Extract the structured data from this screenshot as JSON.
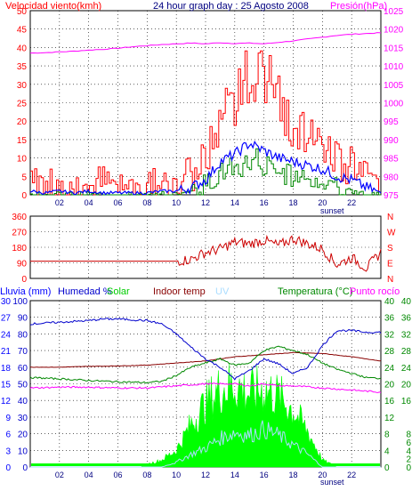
{
  "colors": {
    "wind": "#ff0000",
    "wind_avg": "#0000ff",
    "wind_gust_low": "#008800",
    "pressure": "#ff00ff",
    "direction": "#cc0000",
    "humidity": "#0000cc",
    "solar": "#00ff00",
    "indoor": "#880000",
    "uv": "#aaddff",
    "temperature": "#008800",
    "dewpoint": "#ff00ff",
    "rain": "#0000ff",
    "grid": "#000000",
    "navy": "#000080"
  },
  "top": {
    "left_label": "Velocidad viento(kmh)",
    "title": "24 hour graph day : 25 Agosto 2008",
    "right_label": "Presión(hPa)",
    "sunset_label": "sunset"
  },
  "middle": {
    "compass": [
      "N",
      "W",
      "S",
      "E",
      "N"
    ]
  },
  "bottom": {
    "rain_label": "Lluvia (mm)",
    "humidity_label": "Humedad %",
    "solar_label": "Solar",
    "indoor_label": "Indoor temp",
    "uv_label": "UV",
    "temp_label": "Temperatura (°C)",
    "dew_label": "Punto rocío",
    "sunset_label": "sunset"
  },
  "chart_data": [
    {
      "type": "line",
      "title": "24 hour graph day : 25 Agosto 2008",
      "ylabel": "Velocidad viento(kmh)",
      "ylabel_right": "Presión(hPa)",
      "ylim": [
        0,
        50
      ],
      "ylim_right": [
        975,
        1025
      ],
      "y_ticks": [
        0,
        5,
        10,
        15,
        20,
        25,
        30,
        35,
        40,
        45,
        50
      ],
      "y_ticks_right": [
        975,
        980,
        985,
        990,
        995,
        1000,
        1005,
        1010,
        1015,
        1020,
        1025
      ],
      "x_ticks": [
        "02",
        "04",
        "06",
        "08",
        "10",
        "12",
        "14",
        "16",
        "18",
        "20",
        "22"
      ],
      "series": [
        {
          "name": "Presión(hPa)",
          "axis": "right",
          "x": [
            0,
            1,
            2,
            3,
            4,
            5,
            6,
            7,
            8,
            9,
            10,
            11,
            12,
            13,
            14,
            15,
            16,
            17,
            18,
            19,
            20,
            21,
            22,
            23,
            24
          ],
          "values": [
            1013.5,
            1013.6,
            1013.8,
            1014.0,
            1014.3,
            1014.5,
            1014.8,
            1015.2,
            1015.5,
            1015.8,
            1016.0,
            1016.2,
            1016.0,
            1016.3,
            1016.1,
            1016.2,
            1016.0,
            1016.4,
            1016.8,
            1017.3,
            1017.8,
            1018.3,
            1018.6,
            1018.8,
            1019.0
          ]
        },
        {
          "name": "Velocidad viento",
          "axis": "left",
          "x": [
            0,
            1,
            2,
            3,
            4,
            5,
            6,
            7,
            8,
            9,
            10,
            11,
            12,
            13,
            14,
            15,
            16,
            17,
            18,
            19,
            20,
            21,
            22,
            23,
            24
          ],
          "values": [
            2,
            3,
            3,
            2,
            2,
            3,
            2,
            2,
            2,
            3,
            3,
            5,
            10,
            20,
            24,
            30,
            26,
            22,
            18,
            16,
            14,
            10,
            8,
            5,
            2
          ]
        },
        {
          "name": "Velocidad media",
          "axis": "left",
          "x": [
            0,
            1,
            2,
            3,
            4,
            5,
            6,
            7,
            8,
            9,
            10,
            11,
            12,
            13,
            14,
            15,
            16,
            17,
            18,
            19,
            20,
            21,
            22,
            23,
            24
          ],
          "values": [
            1,
            0.5,
            1,
            0.5,
            1,
            0.5,
            0.5,
            0.5,
            0.5,
            1,
            1,
            2,
            4,
            9,
            11,
            14,
            12,
            10,
            9,
            8,
            7,
            5,
            4,
            2,
            0.5
          ]
        },
        {
          "name": "Racha baja",
          "axis": "left",
          "x": [
            0,
            1,
            2,
            3,
            4,
            5,
            6,
            7,
            8,
            9,
            10,
            11,
            12,
            13,
            14,
            15,
            16,
            17,
            18,
            19,
            20,
            21,
            22,
            23,
            24
          ],
          "values": [
            0,
            0,
            0,
            0,
            0,
            0,
            0,
            0,
            0,
            0,
            0,
            1,
            3,
            6,
            7,
            9,
            7,
            6,
            5,
            4,
            3,
            2,
            1,
            0,
            0
          ]
        }
      ]
    },
    {
      "type": "line",
      "ylim": [
        0,
        360
      ],
      "y_ticks": [
        0,
        90,
        180,
        270,
        360
      ],
      "series": [
        {
          "name": "Dirección viento",
          "x": [
            0,
            2,
            4,
            6,
            8,
            9,
            10,
            11,
            12,
            13,
            14,
            15,
            16,
            17,
            18,
            19,
            20,
            21,
            22,
            23,
            24
          ],
          "values": [
            100,
            100,
            100,
            100,
            100,
            100,
            100,
            110,
            150,
            170,
            210,
            200,
            220,
            190,
            230,
            200,
            170,
            80,
            120,
            60,
            150
          ]
        }
      ]
    },
    {
      "type": "line",
      "x_ticks": [
        "02",
        "04",
        "06",
        "08",
        "10",
        "12",
        "14",
        "16",
        "18",
        "20",
        "22"
      ],
      "axes": {
        "rain": {
          "ylim": [
            0,
            30
          ],
          "ticks": [
            0,
            3,
            6,
            9,
            12,
            15,
            18,
            21,
            24,
            27,
            30
          ]
        },
        "humidity": {
          "ylim": [
            0,
            100
          ],
          "ticks": [
            0,
            10,
            20,
            30,
            40,
            50,
            60,
            70,
            80,
            90,
            100
          ]
        },
        "temp_c": {
          "ylim": [
            0,
            40
          ],
          "ticks": [
            0,
            4,
            8,
            12,
            16,
            20,
            24,
            28,
            32,
            36,
            40
          ]
        },
        "temp_c_outer": {
          "ylim": [
            0,
            40
          ],
          "ticks": [
            0,
            2,
            4,
            6,
            8,
            16,
            20,
            24,
            28,
            32,
            36,
            40
          ]
        }
      },
      "series": [
        {
          "name": "Humedad %",
          "axis": "humidity",
          "x": [
            0,
            2,
            4,
            5,
            6,
            8,
            9,
            10,
            11,
            12,
            13,
            14,
            15,
            16,
            17,
            18,
            19,
            20,
            21,
            22,
            23,
            24
          ],
          "values": [
            86,
            87,
            88,
            89,
            89,
            88,
            86,
            80,
            72,
            65,
            60,
            53,
            58,
            65,
            62,
            56,
            60,
            73,
            82,
            82,
            81,
            81
          ]
        },
        {
          "name": "Indoor temp",
          "axis": "temp_c",
          "x": [
            0,
            2,
            4,
            6,
            8,
            10,
            12,
            14,
            16,
            18,
            20,
            22,
            24
          ],
          "values": [
            24,
            24,
            24.2,
            24.3,
            24.5,
            25,
            25.5,
            26.5,
            27,
            27.5,
            27.3,
            26.5,
            25.5
          ]
        },
        {
          "name": "Temperatura (°C)",
          "axis": "temp_c",
          "x": [
            0,
            2,
            4,
            6,
            8,
            9,
            10,
            11,
            12,
            13,
            14,
            15,
            16,
            17,
            18,
            19,
            20,
            21,
            22,
            23,
            24
          ],
          "values": [
            21.5,
            21.2,
            20.8,
            20.5,
            20.3,
            20.6,
            22,
            24,
            25,
            26,
            24.5,
            25,
            28,
            29,
            28,
            27,
            25,
            23.5,
            22.5,
            21.5,
            21.3
          ]
        },
        {
          "name": "Punto rocío",
          "axis": "temp_c",
          "x": [
            0,
            2,
            4,
            6,
            8,
            10,
            12,
            14,
            15,
            16,
            17,
            18,
            20,
            22,
            24
          ],
          "values": [
            19,
            19.2,
            19.2,
            19,
            19,
            19.5,
            20,
            20,
            19.5,
            20,
            19.5,
            19.5,
            19,
            18.5,
            18
          ]
        },
        {
          "name": "Solar",
          "axis": "humidity",
          "x": [
            0,
            7.5,
            8,
            9,
            10,
            11,
            12,
            13,
            14,
            15,
            16,
            17,
            18,
            19,
            20,
            21,
            24
          ],
          "values": [
            0,
            0,
            2,
            5,
            12,
            30,
            45,
            55,
            58,
            52,
            55,
            50,
            40,
            25,
            5,
            0,
            0
          ]
        },
        {
          "name": "UV",
          "axis": "humidity",
          "x": [
            0,
            9,
            10,
            11,
            12,
            13,
            14,
            15,
            16,
            17,
            18,
            19,
            20,
            24
          ],
          "values": [
            0,
            0,
            3,
            8,
            12,
            18,
            22,
            20,
            24,
            20,
            14,
            8,
            0,
            0
          ]
        },
        {
          "name": "Lluvia (mm)",
          "axis": "rain",
          "x": [
            0,
            24
          ],
          "values": [
            0,
            0
          ]
        }
      ]
    }
  ]
}
